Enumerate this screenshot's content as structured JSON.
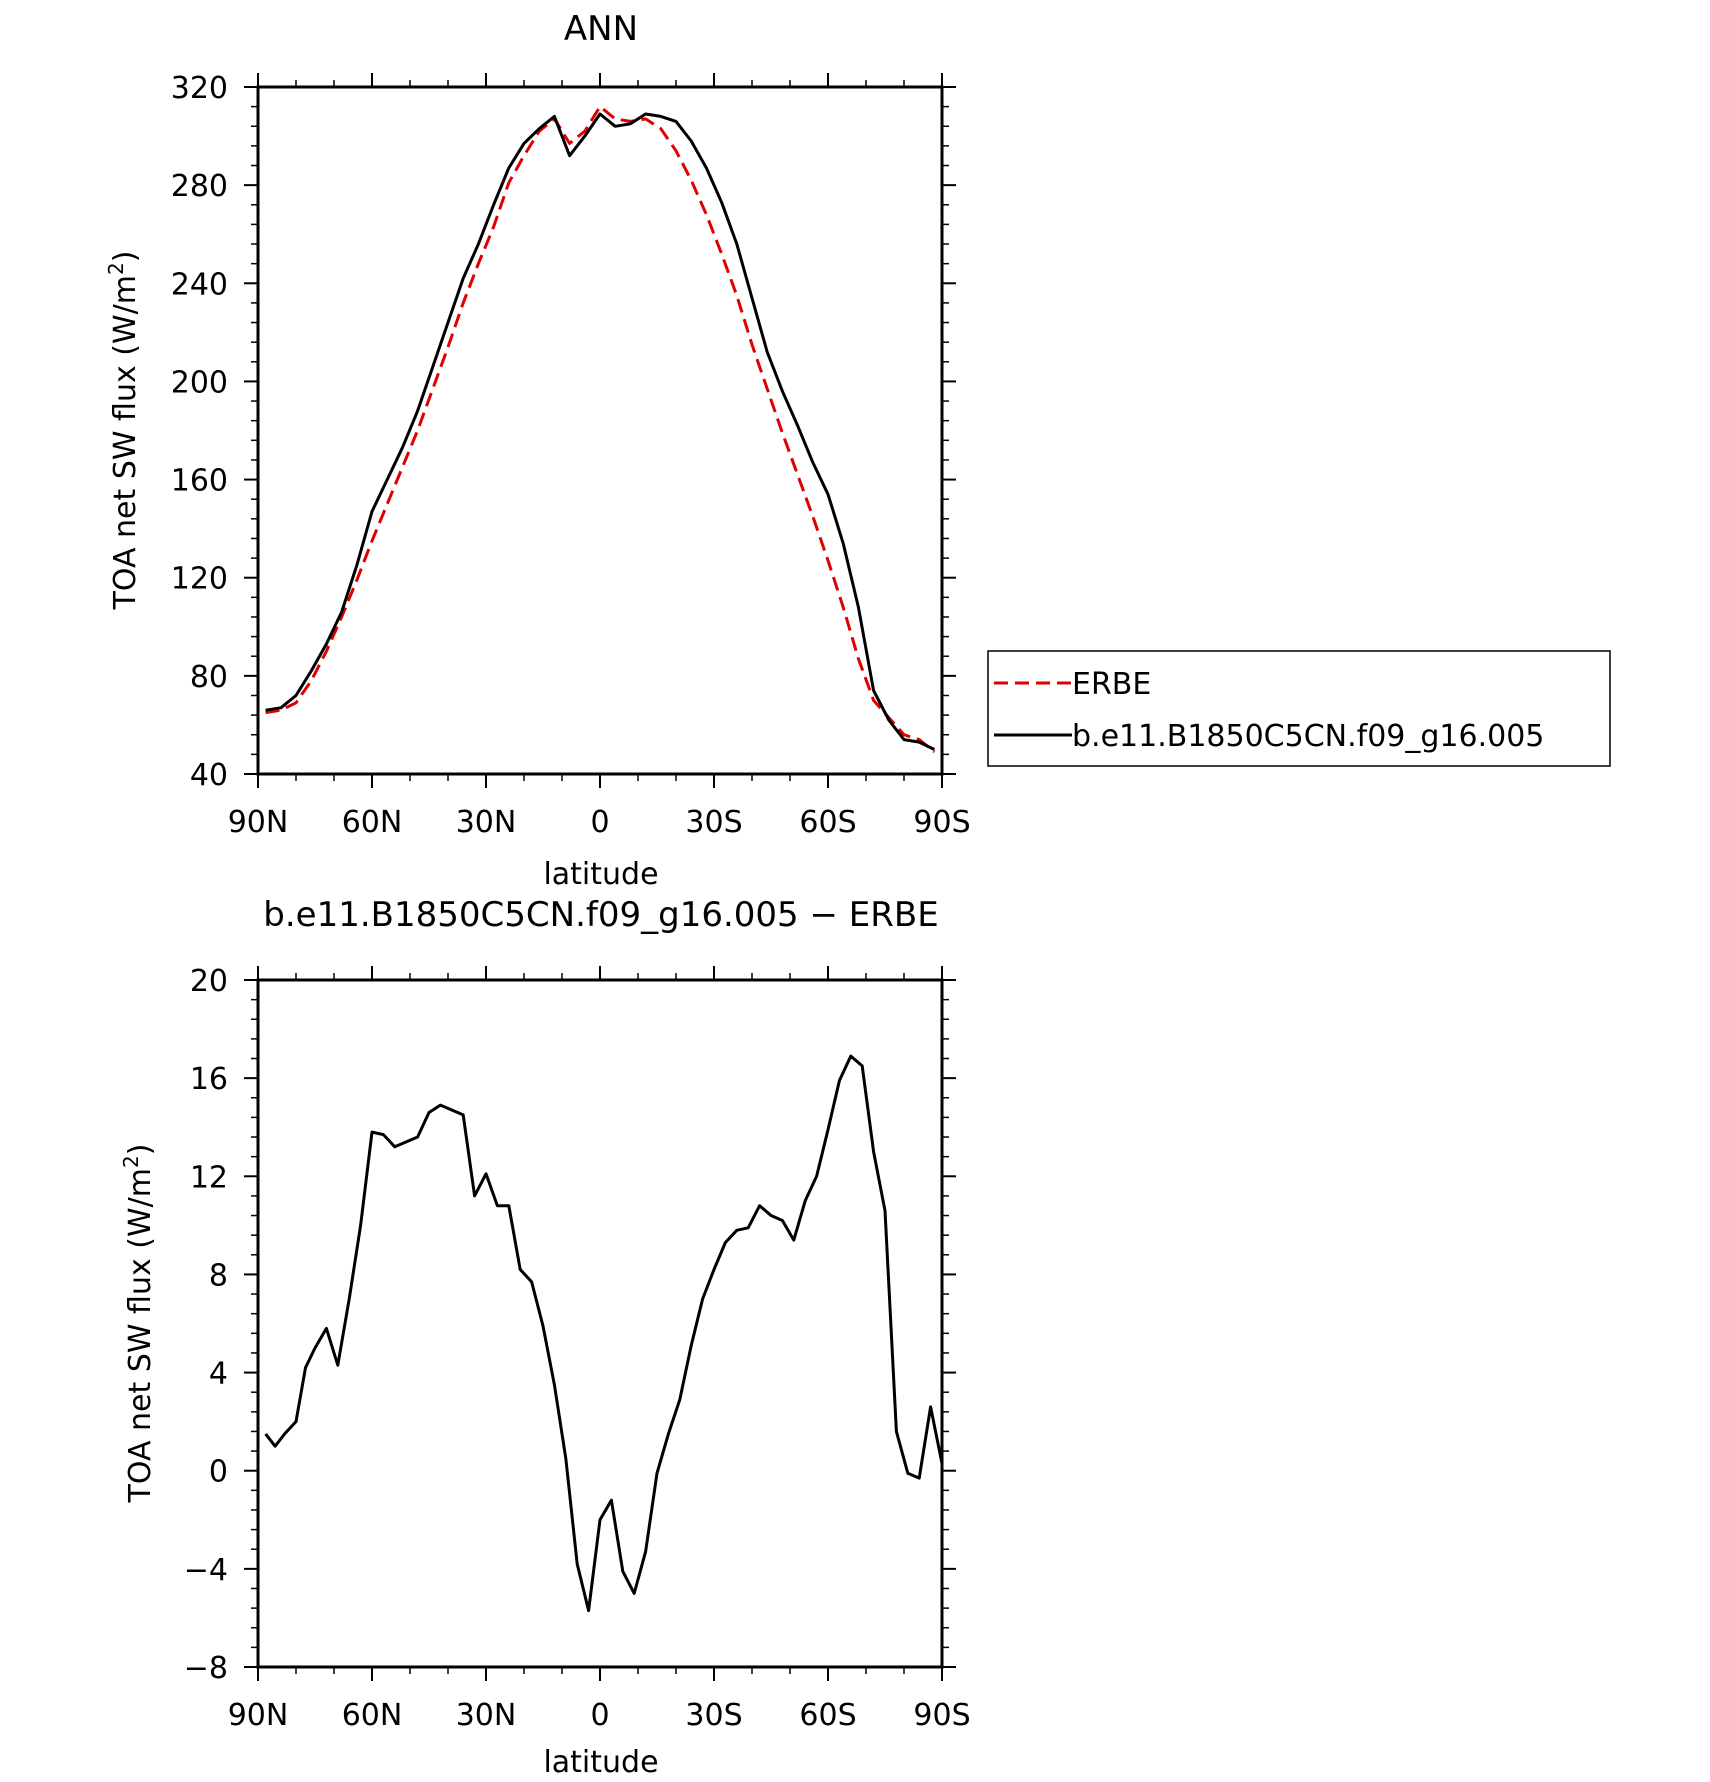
{
  "chart_data": [
    {
      "type": "line",
      "title": "ANN",
      "xlabel": "latitude",
      "ylabel": "TOA net SW flux (W/m",
      "ylabel_sup": "2",
      "ylabel_close": ")",
      "xlim": [
        -90,
        90
      ],
      "ylim": [
        40,
        320
      ],
      "xticks": [
        -90,
        -60,
        -30,
        0,
        30,
        60,
        90
      ],
      "xtick_labels": [
        "90N",
        "60N",
        "30N",
        "0",
        "30S",
        "60S",
        "90S"
      ],
      "yticks": [
        40,
        80,
        120,
        160,
        200,
        240,
        280,
        320
      ],
      "ytick_labels": [
        "40",
        "80",
        "120",
        "160",
        "200",
        "240",
        "280",
        "320"
      ],
      "legend": "right",
      "grid": false,
      "series": [
        {
          "name": "ERBE",
          "color": "#e00000",
          "dash": true,
          "x": [
            -88,
            -84,
            -80,
            -76,
            -72,
            -68,
            -64,
            -60,
            -56,
            -52,
            -48,
            -44,
            -40,
            -36,
            -32,
            -28,
            -24,
            -20,
            -16,
            -12,
            -8,
            -4,
            0,
            4,
            8,
            12,
            16,
            20,
            24,
            28,
            32,
            36,
            40,
            44,
            48,
            52,
            56,
            60,
            64,
            68,
            72,
            76,
            80,
            84,
            88
          ],
          "y": [
            65,
            66,
            69,
            78,
            90,
            104,
            119,
            135,
            150,
            165,
            180,
            197,
            214,
            232,
            248,
            263,
            281,
            292,
            302,
            307,
            297,
            302,
            312,
            307,
            306,
            307,
            303,
            294,
            282,
            268,
            252,
            235,
            215,
            197,
            179,
            162,
            145,
            127,
            108,
            87,
            70,
            63,
            56,
            54,
            49
          ]
        },
        {
          "name": "b.e11.B1850C5CN.f09_g16.005",
          "color": "#000000",
          "dash": false,
          "x": [
            -88,
            -84,
            -80,
            -76,
            -72,
            -68,
            -64,
            -60,
            -56,
            -52,
            -48,
            -44,
            -40,
            -36,
            -32,
            -28,
            -24,
            -20,
            -16,
            -12,
            -8,
            -4,
            0,
            4,
            8,
            12,
            16,
            20,
            24,
            28,
            32,
            36,
            40,
            44,
            48,
            52,
            56,
            60,
            64,
            68,
            72,
            76,
            80,
            84,
            88
          ],
          "y": [
            66,
            67,
            72,
            82,
            93,
            106,
            125,
            147,
            160,
            173,
            188,
            206,
            224,
            242,
            256,
            272,
            287,
            297,
            303,
            308,
            292,
            300,
            309,
            304,
            305,
            309,
            308,
            306,
            298,
            287,
            273,
            256,
            234,
            212,
            196,
            182,
            167,
            154,
            134,
            108,
            74,
            62,
            54,
            53,
            50
          ]
        }
      ]
    },
    {
      "type": "line",
      "title": "b.e11.B1850C5CN.f09_g16.005 − ERBE",
      "xlabel": "latitude",
      "ylabel": "TOA net SW flux (W/m",
      "ylabel_sup": "2",
      "ylabel_close": ")",
      "xlim": [
        -90,
        90
      ],
      "ylim": [
        -8,
        20
      ],
      "xticks": [
        -90,
        -60,
        -30,
        0,
        30,
        60,
        90
      ],
      "xtick_labels": [
        "90N",
        "60N",
        "30N",
        "0",
        "30S",
        "60S",
        "90S"
      ],
      "yticks": [
        -8,
        -4,
        0,
        4,
        8,
        12,
        16,
        20
      ],
      "ytick_labels": [
        "−8",
        "−4",
        "0",
        "4",
        "8",
        "12",
        "16",
        "20"
      ],
      "grid": false,
      "series": [
        {
          "color": "#000000",
          "dash": false,
          "x": [
            -88,
            -85.5,
            -83,
            -80,
            -77.5,
            -75,
            -72,
            -69,
            -66,
            -63,
            -60,
            -57,
            -54,
            -51,
            -48,
            -45,
            -42,
            -39,
            -36,
            -33,
            -30,
            -27,
            -24,
            -21,
            -18,
            -15,
            -12,
            -9,
            -6,
            -3,
            0,
            3,
            6,
            9,
            12,
            15,
            18,
            21,
            24,
            27,
            30,
            33,
            36,
            39,
            42,
            45,
            48,
            51,
            54,
            57,
            60,
            63,
            66,
            69,
            72,
            75,
            78,
            81,
            84,
            87,
            90
          ],
          "y": [
            1.5,
            1,
            1.5,
            2,
            4.2,
            5.0,
            5.8,
            4.3,
            7,
            10,
            13.8,
            13.7,
            13.2,
            13.4,
            13.6,
            14.6,
            14.9,
            14.7,
            14.5,
            11.2,
            12.1,
            10.8,
            10.8,
            8.2,
            7.7,
            5.9,
            3.5,
            0.5,
            -3.8,
            -5.7,
            -2,
            -1.2,
            -4.1,
            -5,
            -3.3,
            -0.1,
            1.5,
            2.9,
            5.1,
            7,
            8.2,
            9.3,
            9.8,
            9.9,
            10.8,
            10.4,
            10.2,
            9.4,
            11,
            12,
            13.9,
            15.9,
            16.9,
            16.5,
            13,
            10.6,
            1.6,
            -0.1,
            -0.3,
            2.6,
            0.3
          ]
        }
      ]
    }
  ]
}
